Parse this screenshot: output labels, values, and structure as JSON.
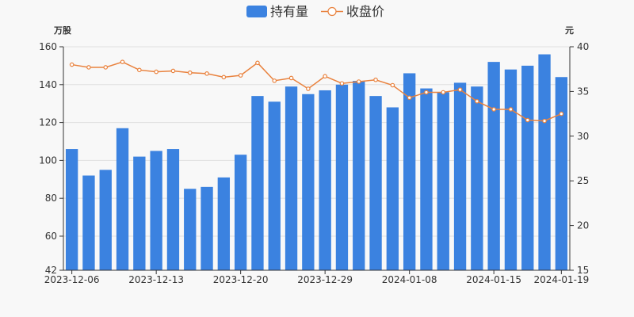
{
  "chart_data": {
    "type": "bar+line",
    "legend": {
      "placement": "top-center",
      "items": [
        {
          "label": "持有量",
          "kind": "bar",
          "color": "#3b82e0"
        },
        {
          "label": "收盘价",
          "kind": "line",
          "color": "#e9823e"
        }
      ]
    },
    "left_axis": {
      "unit": "万股",
      "min": 42,
      "max": 160,
      "ticks": [
        42,
        60,
        80,
        100,
        120,
        140,
        160
      ]
    },
    "right_axis": {
      "unit": "元",
      "min": 15,
      "max": 40,
      "ticks": [
        15,
        20,
        25,
        30,
        35,
        40
      ]
    },
    "x_tick_labels": [
      {
        "label": "2023-12-06",
        "index": 0
      },
      {
        "label": "2023-12-13",
        "index": 5
      },
      {
        "label": "2023-12-20",
        "index": 10
      },
      {
        "label": "2023-12-29",
        "index": 15
      },
      {
        "label": "2024-01-08",
        "index": 20
      },
      {
        "label": "2024-01-15",
        "index": 25
      },
      {
        "label": "2024-01-19",
        "index": 29
      }
    ],
    "categories": [
      "1",
      "2",
      "3",
      "4",
      "5",
      "6",
      "7",
      "8",
      "9",
      "10",
      "11",
      "12",
      "13",
      "14",
      "15",
      "16",
      "17",
      "18",
      "19",
      "20",
      "21",
      "22",
      "23",
      "24",
      "25",
      "26",
      "27",
      "28",
      "29",
      "30"
    ],
    "series": [
      {
        "name": "持有量",
        "axis": "left",
        "values": [
          106,
          92,
          95,
          117,
          102,
          105,
          106,
          85,
          86,
          91,
          103,
          134,
          131,
          139,
          135,
          137,
          140,
          142,
          134,
          128,
          146,
          138,
          136,
          141,
          139,
          152,
          148,
          150,
          156,
          144
        ]
      },
      {
        "name": "收盘价",
        "axis": "right",
        "values": [
          38.0,
          37.7,
          37.7,
          38.3,
          37.4,
          37.2,
          37.3,
          37.1,
          37.0,
          36.6,
          36.8,
          38.2,
          36.2,
          36.5,
          35.3,
          36.7,
          35.9,
          36.1,
          36.3,
          35.7,
          34.3,
          34.9,
          34.9,
          35.2,
          33.9,
          33.0,
          33.0,
          31.8,
          31.7,
          32.5
        ]
      }
    ],
    "grid": true
  }
}
